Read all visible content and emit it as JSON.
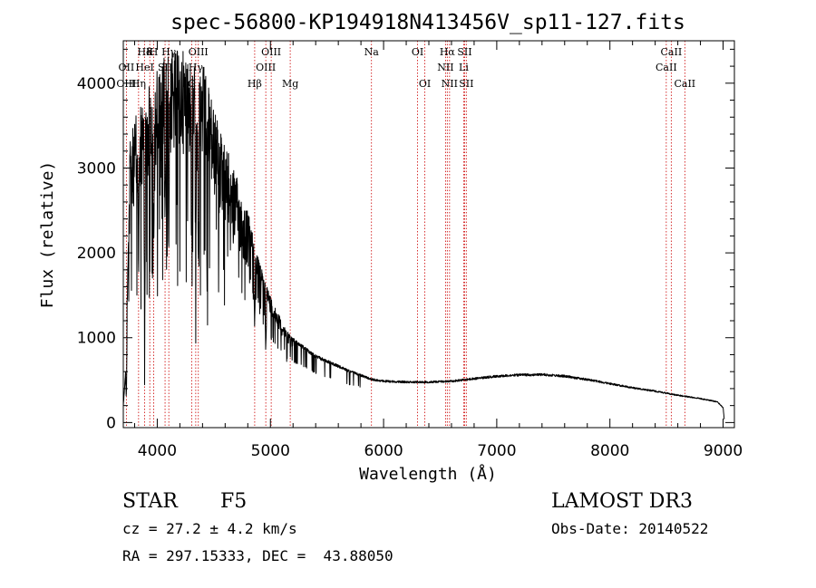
{
  "chart_data": {
    "type": "line",
    "title": "spec-56800-KP194918N413456V_sp11-127.fits",
    "xlabel": "Wavelength (Å)",
    "ylabel": "Flux (relative)",
    "xlim": [
      3700,
      9100
    ],
    "ylim": [
      -60,
      4500
    ],
    "x_ticks": [
      4000,
      5000,
      6000,
      7000,
      8000,
      9000
    ],
    "y_ticks": [
      0,
      1000,
      2000,
      3000,
      4000
    ],
    "grid": false,
    "line_color": "#000000",
    "marker_color": "#cc0000",
    "envelope": [
      [
        3700,
        200
      ],
      [
        3720,
        600
      ],
      [
        3760,
        3300
      ],
      [
        3800,
        3600
      ],
      [
        3850,
        3700
      ],
      [
        3900,
        4000
      ],
      [
        3950,
        4100
      ],
      [
        4000,
        4200
      ],
      [
        4050,
        4300
      ],
      [
        4100,
        4350
      ],
      [
        4200,
        4420
      ],
      [
        4300,
        4350
      ],
      [
        4400,
        4250
      ],
      [
        4450,
        4050
      ],
      [
        4500,
        3700
      ],
      [
        4600,
        3300
      ],
      [
        4700,
        2900
      ],
      [
        4800,
        2500
      ],
      [
        4900,
        1900
      ],
      [
        5000,
        1500
      ],
      [
        5100,
        1200
      ],
      [
        5200,
        1000
      ],
      [
        5300,
        900
      ],
      [
        5400,
        800
      ],
      [
        5500,
        740
      ],
      [
        5600,
        680
      ],
      [
        5700,
        620
      ],
      [
        5800,
        570
      ],
      [
        5900,
        520
      ],
      [
        6000,
        500
      ],
      [
        6200,
        490
      ],
      [
        6400,
        490
      ],
      [
        6600,
        500
      ],
      [
        6800,
        530
      ],
      [
        7000,
        560
      ],
      [
        7200,
        575
      ],
      [
        7400,
        580
      ],
      [
        7600,
        560
      ],
      [
        7800,
        520
      ],
      [
        8000,
        470
      ],
      [
        8200,
        420
      ],
      [
        8400,
        380
      ],
      [
        8600,
        330
      ],
      [
        8800,
        290
      ],
      [
        8950,
        250
      ],
      [
        9000,
        180
      ],
      [
        9010,
        40
      ]
    ],
    "lines": [
      {
        "label": "Hδ",
        "wavelength": 3889,
        "row": 1
      },
      {
        "label": "K",
        "wavelength": 3934,
        "row": 1
      },
      {
        "label": "H",
        "wavelength": 3969,
        "row": 1
      },
      {
        "label": "Hγ",
        "wavelength": 4102,
        "row": 1
      },
      {
        "label": "OIII",
        "wavelength": 4363,
        "row": 1
      },
      {
        "label": "OIII",
        "wavelength": 5007,
        "row": 1
      },
      {
        "label": "OI",
        "wavelength": 6300,
        "row": 1
      },
      {
        "label": "Hα",
        "wavelength": 6563,
        "row": 1
      },
      {
        "label": "SII",
        "wavelength": 6716,
        "row": 1
      },
      {
        "label": "CaII",
        "wavelength": 8542,
        "row": 1
      },
      {
        "label": "OII",
        "wavelength": 3727,
        "row": 2
      },
      {
        "label": "HeI",
        "wavelength": 3889,
        "row": 2
      },
      {
        "label": "SII",
        "wavelength": 4069,
        "row": 2
      },
      {
        "label": "Hγ",
        "wavelength": 4340,
        "row": 2
      },
      {
        "label": "OIII",
        "wavelength": 4959,
        "row": 2
      },
      {
        "label": "NII",
        "wavelength": 6548,
        "row": 2
      },
      {
        "label": "Li",
        "wavelength": 6708,
        "row": 2
      },
      {
        "label": "CaII",
        "wavelength": 8498,
        "row": 2
      },
      {
        "label": "OIII",
        "wavelength": 3727,
        "row": 3
      },
      {
        "label": "Hη",
        "wavelength": 3835,
        "row": 3
      },
      {
        "label": "G",
        "wavelength": 4304,
        "row": 3
      },
      {
        "label": "Hβ",
        "wavelength": 4861,
        "row": 3
      },
      {
        "label": "Mg",
        "wavelength": 5175,
        "row": 3
      },
      {
        "label": "Na",
        "wavelength": 5893,
        "row": 1
      },
      {
        "label": "OI",
        "wavelength": 6364,
        "row": 3
      },
      {
        "label": "NII",
        "wavelength": 6583,
        "row": 3
      },
      {
        "label": "SII",
        "wavelength": 6731,
        "row": 3
      },
      {
        "label": "CaII",
        "wavelength": 8662,
        "row": 3
      }
    ]
  },
  "info": {
    "object_class": "STAR",
    "subclass": "F5",
    "survey": "LAMOST DR3",
    "redshift": "cz = 27.2 ± 4.2 km/s",
    "obs_date": "Obs-Date: 20140522",
    "coords": "RA = 297.15333, DEC =  43.88050"
  }
}
